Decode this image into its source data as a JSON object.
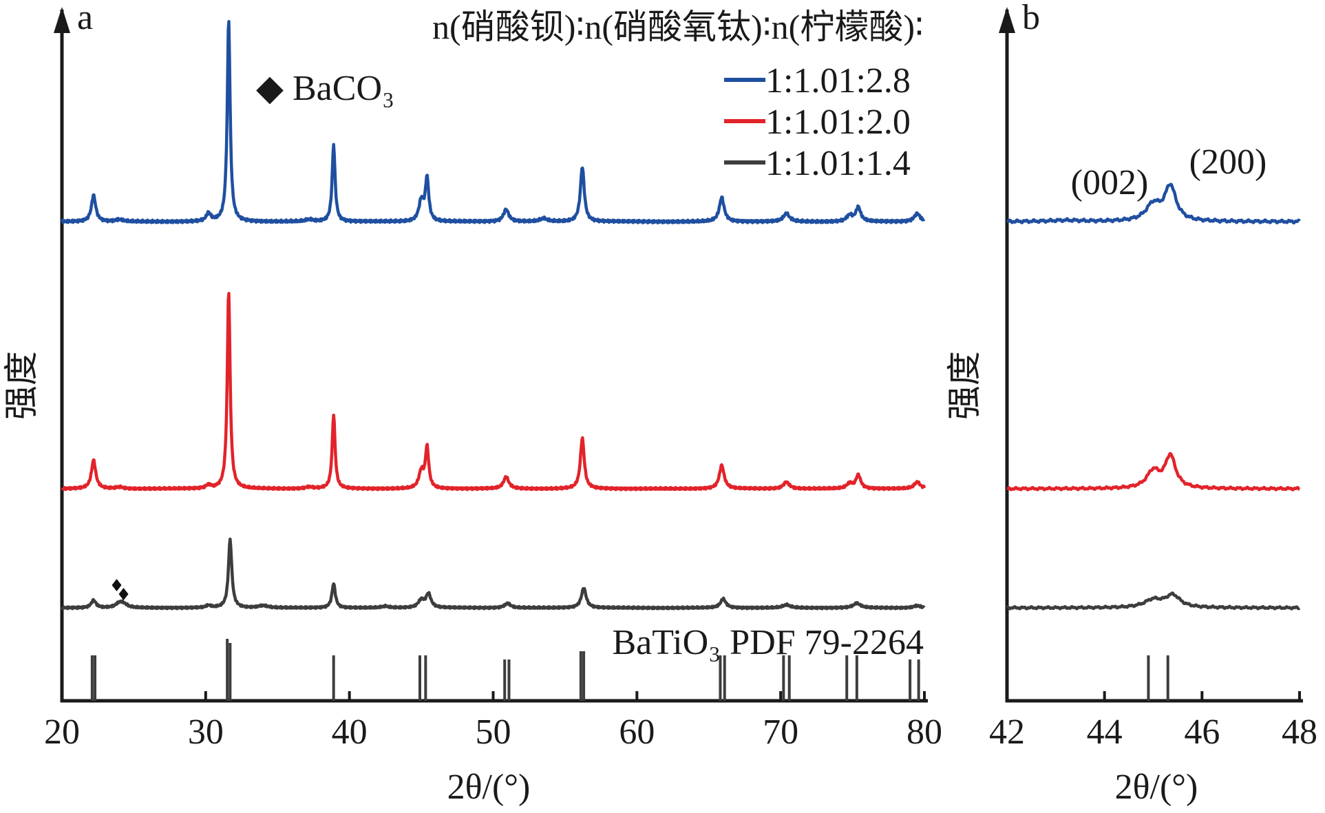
{
  "chart_data": [
    {
      "panel": "a",
      "type": "line",
      "subtype": "XRD patterns (offset, stacked)",
      "xlabel": "2θ/(°)",
      "ylabel": "强度",
      "xlim": [
        20,
        80
      ],
      "xticks": [
        "20",
        "30",
        "40",
        "50",
        "60",
        "70",
        "80"
      ],
      "yticks": [],
      "legend": {
        "title": "n(硝酸钡)∶n(硝酸氧钛)∶n(柠檬酸)∶",
        "placement": "top-right",
        "entries": [
          "1:1.01:2.8",
          "1:1.01:2.0",
          "1:1.01:1.4"
        ]
      },
      "annotations": [
        {
          "label": "◆ BaCO₃",
          "marker_at_2theta": 24.0,
          "series": "1:1.01:1.4"
        },
        {
          "label": "BaTiO₃ PDF 79-2264"
        }
      ],
      "reference_pattern": {
        "name": "BaTiO₃ PDF 79-2264",
        "lines": [
          {
            "x": 22.1,
            "h": 0.55
          },
          {
            "x": 22.3,
            "h": 0.55
          },
          {
            "x": 31.5,
            "h": 0.75
          },
          {
            "x": 31.7,
            "h": 0.7
          },
          {
            "x": 38.9,
            "h": 0.55
          },
          {
            "x": 44.9,
            "h": 0.55
          },
          {
            "x": 45.3,
            "h": 0.55
          },
          {
            "x": 50.8,
            "h": 0.5
          },
          {
            "x": 51.1,
            "h": 0.5
          },
          {
            "x": 56.1,
            "h": 0.6
          },
          {
            "x": 56.3,
            "h": 0.6
          },
          {
            "x": 65.8,
            "h": 0.55
          },
          {
            "x": 66.1,
            "h": 0.55
          },
          {
            "x": 70.2,
            "h": 0.55
          },
          {
            "x": 70.6,
            "h": 0.55
          },
          {
            "x": 74.6,
            "h": 0.55
          },
          {
            "x": 75.3,
            "h": 0.55
          },
          {
            "x": 79.0,
            "h": 0.5
          },
          {
            "x": 79.6,
            "h": 0.5
          }
        ]
      },
      "series": [
        {
          "name": "1:1.01:2.8",
          "color": "#1f4fa0",
          "baseline": 0.0,
          "peaks": [
            {
              "x": 22.2,
              "h": 0.13,
              "w": 0.18
            },
            {
              "x": 24.0,
              "h": 0.01,
              "w": 0.3
            },
            {
              "x": 30.2,
              "h": 0.04,
              "w": 0.18
            },
            {
              "x": 31.6,
              "h": 1.0,
              "w": 0.12
            },
            {
              "x": 37.2,
              "h": 0.01,
              "w": 0.3
            },
            {
              "x": 38.9,
              "h": 0.38,
              "w": 0.12
            },
            {
              "x": 45.0,
              "h": 0.1,
              "w": 0.2
            },
            {
              "x": 45.4,
              "h": 0.21,
              "w": 0.14
            },
            {
              "x": 50.9,
              "h": 0.06,
              "w": 0.22
            },
            {
              "x": 53.5,
              "h": 0.015,
              "w": 0.3
            },
            {
              "x": 56.2,
              "h": 0.27,
              "w": 0.16
            },
            {
              "x": 65.9,
              "h": 0.12,
              "w": 0.2
            },
            {
              "x": 70.4,
              "h": 0.04,
              "w": 0.25
            },
            {
              "x": 74.8,
              "h": 0.03,
              "w": 0.25
            },
            {
              "x": 75.4,
              "h": 0.07,
              "w": 0.2
            },
            {
              "x": 79.5,
              "h": 0.04,
              "w": 0.25
            }
          ]
        },
        {
          "name": "1:1.01:2.0",
          "color": "#e2232a",
          "baseline": 0.0,
          "peaks": [
            {
              "x": 22.2,
              "h": 0.17,
              "w": 0.18
            },
            {
              "x": 24.0,
              "h": 0.01,
              "w": 0.3
            },
            {
              "x": 30.2,
              "h": 0.02,
              "w": 0.2
            },
            {
              "x": 31.6,
              "h": 1.18,
              "w": 0.12
            },
            {
              "x": 37.2,
              "h": 0.01,
              "w": 0.3
            },
            {
              "x": 38.9,
              "h": 0.44,
              "w": 0.12
            },
            {
              "x": 45.0,
              "h": 0.1,
              "w": 0.2
            },
            {
              "x": 45.4,
              "h": 0.24,
              "w": 0.14
            },
            {
              "x": 50.9,
              "h": 0.07,
              "w": 0.22
            },
            {
              "x": 56.2,
              "h": 0.3,
              "w": 0.16
            },
            {
              "x": 65.9,
              "h": 0.14,
              "w": 0.2
            },
            {
              "x": 70.4,
              "h": 0.04,
              "w": 0.25
            },
            {
              "x": 74.8,
              "h": 0.03,
              "w": 0.25
            },
            {
              "x": 75.4,
              "h": 0.08,
              "w": 0.2
            },
            {
              "x": 79.5,
              "h": 0.04,
              "w": 0.25
            }
          ]
        },
        {
          "name": "1:1.01:1.4",
          "color": "#3d3d3d",
          "baseline": 0.0,
          "peaks": [
            {
              "x": 22.2,
              "h": 0.05,
              "w": 0.2
            },
            {
              "x": 24.0,
              "h": 0.03,
              "w": 0.3
            },
            {
              "x": 24.3,
              "h": 0.02,
              "w": 0.3
            },
            {
              "x": 30.2,
              "h": 0.015,
              "w": 0.2
            },
            {
              "x": 31.7,
              "h": 0.45,
              "w": 0.14
            },
            {
              "x": 34.0,
              "h": 0.015,
              "w": 0.4
            },
            {
              "x": 38.9,
              "h": 0.16,
              "w": 0.14
            },
            {
              "x": 42.5,
              "h": 0.01,
              "w": 0.3
            },
            {
              "x": 45.0,
              "h": 0.05,
              "w": 0.25
            },
            {
              "x": 45.5,
              "h": 0.09,
              "w": 0.2
            },
            {
              "x": 51.0,
              "h": 0.03,
              "w": 0.25
            },
            {
              "x": 56.3,
              "h": 0.13,
              "w": 0.2
            },
            {
              "x": 66.0,
              "h": 0.06,
              "w": 0.22
            },
            {
              "x": 70.4,
              "h": 0.02,
              "w": 0.3
            },
            {
              "x": 75.3,
              "h": 0.03,
              "w": 0.3
            },
            {
              "x": 79.5,
              "h": 0.015,
              "w": 0.3
            }
          ]
        }
      ]
    },
    {
      "panel": "b",
      "type": "line",
      "subtype": "XRD patterns zoom (offset, stacked)",
      "xlabel": "2θ/(°)",
      "ylabel": "强度",
      "xlim": [
        42,
        48
      ],
      "xticks": [
        "42",
        "44",
        "46",
        "48"
      ],
      "yticks": [],
      "annotations": [
        {
          "label": "(002)",
          "x": 45.0
        },
        {
          "label": "(200)",
          "x": 45.4
        }
      ],
      "reference_pattern": {
        "lines": [
          {
            "x": 44.9,
            "h": 0.55
          },
          {
            "x": 45.3,
            "h": 0.55
          }
        ]
      },
      "series": [
        {
          "name": "1:1.01:2.8",
          "color": "#1f4fa0",
          "peaks": [
            {
              "x": 43.2,
              "h": 0.006,
              "w": 0.4
            },
            {
              "x": 45.0,
              "h": 0.08,
              "w": 0.18
            },
            {
              "x": 45.35,
              "h": 0.17,
              "w": 0.14
            }
          ]
        },
        {
          "name": "1:1.01:2.0",
          "color": "#e2232a",
          "peaks": [
            {
              "x": 45.0,
              "h": 0.1,
              "w": 0.16
            },
            {
              "x": 45.35,
              "h": 0.19,
              "w": 0.13
            }
          ]
        },
        {
          "name": "1:1.01:1.4",
          "color": "#3d3d3d",
          "peaks": [
            {
              "x": 45.0,
              "h": 0.05,
              "w": 0.22
            },
            {
              "x": 45.4,
              "h": 0.08,
              "w": 0.18
            }
          ]
        }
      ]
    }
  ]
}
